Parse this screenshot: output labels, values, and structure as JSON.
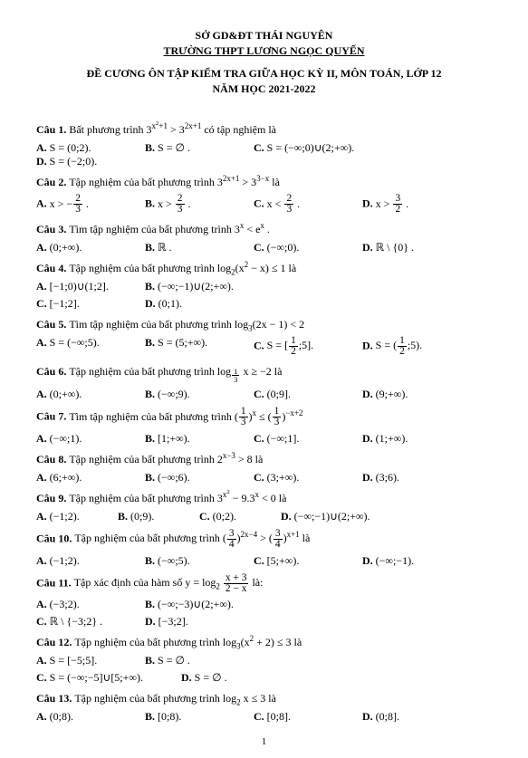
{
  "header": {
    "line1": "SỞ GD&ĐT THÁI NGUYÊN",
    "line2": "TRƯỜNG THPT LƯƠNG NGỌC QUYẾN",
    "title1": "ĐỀ CƯƠNG ÔN TẬP KIỂM TRA GIỮA HỌC KỲ II, MÔN TOÁN, LỚP 12",
    "title2": "NĂM HỌC 2021-2022"
  },
  "page_number": "1",
  "questions": [
    {
      "label": "Câu 1.",
      "text_html": "Bất phương trình 3<sup>x<sup>2</sup>+1</sup> &gt; 3<sup>2x+1</sup> có tập nghiệm là",
      "opts": [
        {
          "k": "A.",
          "v": "S = (0;2)."
        },
        {
          "k": "B.",
          "v": "S = ∅ ."
        },
        {
          "k": "C.",
          "v": "S = (−∞;0)∪(2;+∞).",
          "wide": true
        },
        {
          "k": "D.",
          "v": "S = (−2;0)."
        }
      ]
    },
    {
      "label": "Câu 2.",
      "text_html": "Tập nghiệm của bất phương trình 3<sup>2x+1</sup> &gt; 3<sup>3−x</sup> là",
      "opts": [
        {
          "k": "A.",
          "v_html": "x &gt; −<span class=\"frac\"><span class=\"n\">2</span><span class=\"d\">3</span></span> ."
        },
        {
          "k": "B.",
          "v_html": "x &gt; <span class=\"frac\"><span class=\"n\">2</span><span class=\"d\">3</span></span> ."
        },
        {
          "k": "C.",
          "v_html": "x &lt; <span class=\"frac\"><span class=\"n\">2</span><span class=\"d\">3</span></span> ."
        },
        {
          "k": "D.",
          "v_html": "x &gt; <span class=\"frac\"><span class=\"n\">3</span><span class=\"d\">2</span></span> ."
        }
      ]
    },
    {
      "label": "Câu 3.",
      "text_html": "Tìm tập nghiệm của bất phương trình 3<sup>x</sup> &lt; e<sup>x</sup> .",
      "opts": [
        {
          "k": "A.",
          "v": "(0;+∞)."
        },
        {
          "k": "B.",
          "v": "ℝ ."
        },
        {
          "k": "C.",
          "v": "(−∞;0)."
        },
        {
          "k": "D.",
          "v": "ℝ \\ {0} ."
        }
      ]
    },
    {
      "label": "Câu 4.",
      "text_html": "Tập nghiệm của bất phương trình log<sub>2</sub>(x<sup>2</sup> − x) ≤ 1 là",
      "two_rows": true,
      "row1": [
        {
          "k": "A.",
          "v": "[−1;0)∪(1;2]."
        },
        {
          "k": "B.",
          "v": "(−∞;−1)∪(2;+∞)."
        }
      ],
      "row2": [
        {
          "k": "C.",
          "v": "[−1;2]."
        },
        {
          "k": "D.",
          "v": "(0;1)."
        }
      ]
    },
    {
      "label": "Câu 5.",
      "text_html": "Tìm tập nghiệm của bất phương trình log<sub>3</sub>(2x − 1) &lt; 2",
      "opts": [
        {
          "k": "A.",
          "v": "S = (−∞;5)."
        },
        {
          "k": "B.",
          "v": "S = (5;+∞)."
        },
        {
          "k": "C.",
          "v_html": "S = [<span class=\"frac\"><span class=\"n\">1</span><span class=\"d\">2</span></span>;5]."
        },
        {
          "k": "D.",
          "v_html": "S = (<span class=\"frac\"><span class=\"n\">1</span><span class=\"d\">2</span></span>;5)."
        }
      ]
    },
    {
      "label": "Câu 6.",
      "text_html": "Tập nghiệm của bất phương trình log<sub><span class=\"frac\"><span class=\"n\">1</span><span class=\"d\">3</span></span></sub> x ≥ −2 là",
      "opts": [
        {
          "k": "A.",
          "v": "(0;+∞)."
        },
        {
          "k": "B.",
          "v": "(−∞;9)."
        },
        {
          "k": "C.",
          "v": "(0;9]."
        },
        {
          "k": "D.",
          "v": "(9;+∞)."
        }
      ]
    },
    {
      "label": "Câu 7.",
      "text_html": "Tìm tập nghiệm của bất phương trình (<span class=\"frac\"><span class=\"n\">1</span><span class=\"d\">3</span></span>)<sup>x</sup> ≤ (<span class=\"frac\"><span class=\"n\">1</span><span class=\"d\">3</span></span>)<sup>−x+2</sup>",
      "opts": [
        {
          "k": "A.",
          "v": "(−∞;1)."
        },
        {
          "k": "B.",
          "v": "[1;+∞)."
        },
        {
          "k": "C.",
          "v": "(−∞;1]."
        },
        {
          "k": "D.",
          "v": "(1;+∞)."
        }
      ]
    },
    {
      "label": "Câu 8.",
      "text_html": "Tập nghiệm của bất phương trình 2<sup>x−3</sup> &gt; 8 là",
      "opts": [
        {
          "k": "A.",
          "v": "(6;+∞)."
        },
        {
          "k": "B.",
          "v": "(−∞;6)."
        },
        {
          "k": "C.",
          "v": "(3;+∞)."
        },
        {
          "k": "D.",
          "v": "(3;6)."
        }
      ]
    },
    {
      "label": "Câu 9.",
      "text_html": "Tập nghiệm của bất phương trình 3<sup>x<sup>2</sup></sup> − 9.3<sup>x</sup> &lt; 0 là",
      "opts": [
        {
          "k": "A.",
          "v": "(−1;2).",
          "narrow": true
        },
        {
          "k": "B.",
          "v": "(0;9).",
          "narrow": true
        },
        {
          "k": "C.",
          "v": "(0;2).",
          "narrow": true
        },
        {
          "k": "D.",
          "v": "(−∞;−1)∪(2;+∞).",
          "wide": true
        }
      ]
    },
    {
      "label": "Câu 10.",
      "text_html": "Tập nghiệm của bất phương trình (<span class=\"frac\"><span class=\"n\">3</span><span class=\"d\">4</span></span>)<sup>2x−4</sup> &gt; (<span class=\"frac\"><span class=\"n\">3</span><span class=\"d\">4</span></span>)<sup>x+1</sup> là",
      "opts": [
        {
          "k": "A.",
          "v": "(−1;2)."
        },
        {
          "k": "B.",
          "v": "(−∞;5)."
        },
        {
          "k": "C.",
          "v": "[5;+∞)."
        },
        {
          "k": "D.",
          "v": "(−∞;−1)."
        }
      ]
    },
    {
      "label": "Câu 11.",
      "text_html": "Tập xác định của hàm số y = log<sub>2</sub> <span class=\"frac\"><span class=\"n\">x + 3</span><span class=\"d\">2 − x</span></span> là:",
      "two_rows": true,
      "row1": [
        {
          "k": "A.",
          "v": "(−3;2)."
        },
        {
          "k": "B.",
          "v": "(−∞;−3)∪(2;+∞)."
        }
      ],
      "row2": [
        {
          "k": "C.",
          "v": "ℝ \\ {−3;2} ."
        },
        {
          "k": "D.",
          "v": "[−3;2]."
        }
      ]
    },
    {
      "label": "Câu 12.",
      "text_html": "Tập nghiệm của bất phương trình log<sub>3</sub>(x<sup>2</sup> + 2) ≤ 3 là",
      "two_rows": true,
      "row1": [
        {
          "k": "A.",
          "v": "S = [−5;5]."
        },
        {
          "k": "B.",
          "v": "S = ∅ ."
        }
      ],
      "row2": [
        {
          "k": "C.",
          "v": "S = (−∞;−5]∪[5;+∞).",
          "wide": true
        },
        {
          "k": "D.",
          "v": "S = ∅ ."
        }
      ]
    },
    {
      "label": "Câu 13.",
      "text_html": "Tập nghiệm của bất phương trình log<sub>2</sub> x ≤ 3 là",
      "opts": [
        {
          "k": "A.",
          "v": "(0;8)."
        },
        {
          "k": "B.",
          "v": "[0;8)."
        },
        {
          "k": "C.",
          "v": "[0;8]."
        },
        {
          "k": "D.",
          "v": "(0;8]."
        }
      ]
    }
  ]
}
